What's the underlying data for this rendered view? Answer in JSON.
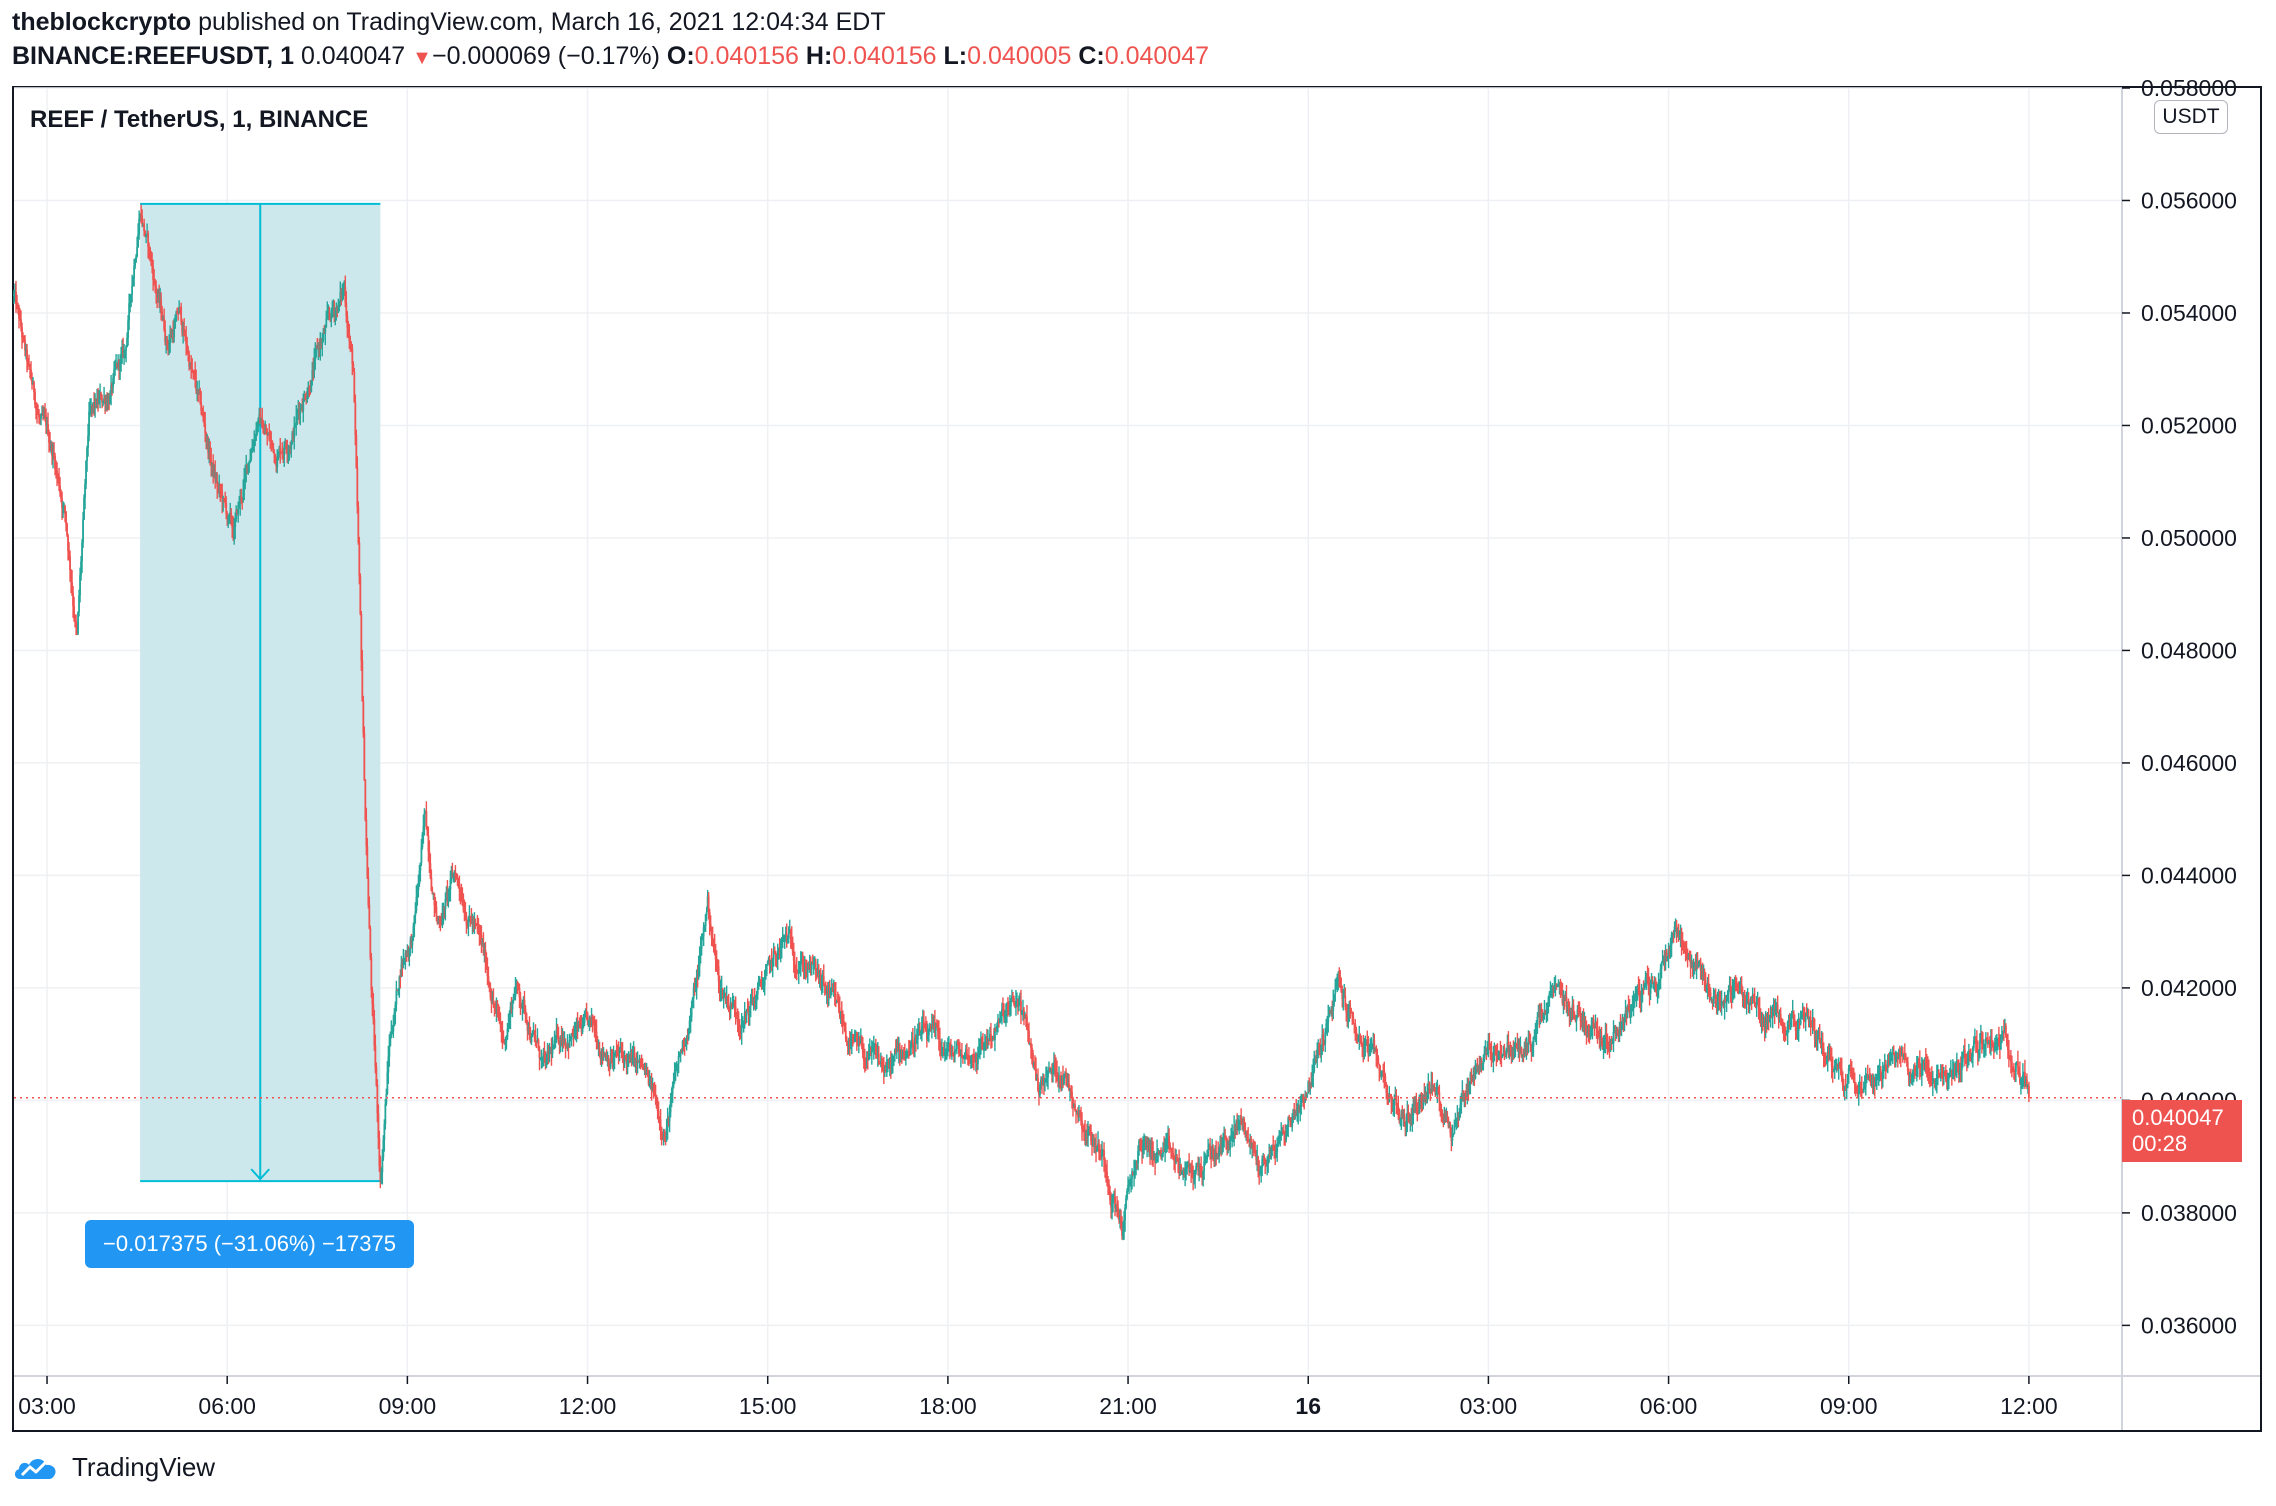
{
  "header": {
    "publisher": "theblockcrypto",
    "published_text": " published on TradingView.com, March 16, 2021 12:04:34 EDT",
    "symbol": "BINANCE:REEFUSDT, 1",
    "last": "0.040047",
    "change_arrow": "▼",
    "change": "−0.000069 (−0.17%)",
    "o_label": "O:",
    "o_value": "0.040156",
    "h_label": "H:",
    "h_value": "0.040156",
    "l_label": "L:",
    "l_value": "0.040005",
    "c_label": "C:",
    "c_value": "0.040047"
  },
  "chart_title": "REEF / TetherUS, 1, BINANCE",
  "currency_badge": "USDT",
  "current_price": {
    "value": "0.040047",
    "countdown": "00:28"
  },
  "measure_label": "−0.017375 (−31.06%) −17375",
  "footer": {
    "brand": "TradingView",
    "icon": "tradingview-cloud-icon"
  },
  "colors": {
    "up": "#26a69a",
    "down": "#ef5350",
    "measure_fill": "#cde8ec",
    "measure_line": "#00bcd4",
    "label_bg": "#2196f3"
  },
  "chart_data": {
    "type": "candlestick",
    "title": "REEF / TetherUS, 1, BINANCE",
    "ylim": [
      0.0351,
      0.058
    ],
    "y_ticks": [
      "0.036000",
      "0.038000",
      "0.040000",
      "0.042000",
      "0.044000",
      "0.046000",
      "0.048000",
      "0.050000",
      "0.052000",
      "0.054000",
      "0.056000",
      "0.058000"
    ],
    "x_ticks": [
      {
        "label": "03:00",
        "h": 3,
        "bold": false
      },
      {
        "label": "06:00",
        "h": 6,
        "bold": false
      },
      {
        "label": "09:00",
        "h": 9,
        "bold": false
      },
      {
        "label": "12:00",
        "h": 12,
        "bold": false
      },
      {
        "label": "15:00",
        "h": 15,
        "bold": false
      },
      {
        "label": "18:00",
        "h": 18,
        "bold": false
      },
      {
        "label": "21:00",
        "h": 21,
        "bold": false
      },
      {
        "label": "16",
        "h": 24,
        "bold": true
      },
      {
        "label": "03:00",
        "h": 27,
        "bold": false
      },
      {
        "label": "06:00",
        "h": 30,
        "bold": false
      },
      {
        "label": "09:00",
        "h": 33,
        "bold": false
      },
      {
        "label": "12:00",
        "h": 36,
        "bold": false
      }
    ],
    "xlim_hours": [
      2.45,
      37.55
    ],
    "price_path": [
      [
        2.45,
        0.0543
      ],
      [
        2.7,
        0.0528
      ],
      [
        2.9,
        0.052
      ],
      [
        3.1,
        0.0515
      ],
      [
        3.3,
        0.0505
      ],
      [
        3.5,
        0.0483
      ],
      [
        3.7,
        0.052
      ],
      [
        4.0,
        0.0525
      ],
      [
        4.3,
        0.0532
      ],
      [
        4.55,
        0.056
      ],
      [
        4.8,
        0.0545
      ],
      [
        5.0,
        0.0535
      ],
      [
        5.2,
        0.054
      ],
      [
        5.5,
        0.0525
      ],
      [
        5.8,
        0.051
      ],
      [
        6.1,
        0.05
      ],
      [
        6.3,
        0.051
      ],
      [
        6.5,
        0.0522
      ],
      [
        6.8,
        0.0515
      ],
      [
        7.1,
        0.052
      ],
      [
        7.4,
        0.053
      ],
      [
        7.7,
        0.0538
      ],
      [
        7.95,
        0.0544
      ],
      [
        8.1,
        0.053
      ],
      [
        8.2,
        0.049
      ],
      [
        8.3,
        0.045
      ],
      [
        8.4,
        0.042
      ],
      [
        8.55,
        0.0386
      ],
      [
        8.7,
        0.041
      ],
      [
        8.9,
        0.0425
      ],
      [
        9.1,
        0.043
      ],
      [
        9.3,
        0.045
      ],
      [
        9.5,
        0.0432
      ],
      [
        9.8,
        0.044
      ],
      [
        10.1,
        0.0432
      ],
      [
        10.4,
        0.042
      ],
      [
        10.6,
        0.041
      ],
      [
        10.8,
        0.0421
      ],
      [
        11.0,
        0.0415
      ],
      [
        11.3,
        0.0405
      ],
      [
        11.6,
        0.0412
      ],
      [
        12.0,
        0.0412
      ],
      [
        12.5,
        0.0408
      ],
      [
        12.9,
        0.0405
      ],
      [
        13.3,
        0.0395
      ],
      [
        13.6,
        0.041
      ],
      [
        13.8,
        0.042
      ],
      [
        14.0,
        0.0435
      ],
      [
        14.2,
        0.042
      ],
      [
        14.6,
        0.0415
      ],
      [
        15.0,
        0.0422
      ],
      [
        15.3,
        0.0428
      ],
      [
        15.7,
        0.0424
      ],
      [
        16.0,
        0.0418
      ],
      [
        16.5,
        0.0408
      ],
      [
        17.0,
        0.0405
      ],
      [
        17.5,
        0.0412
      ],
      [
        18.0,
        0.0408
      ],
      [
        18.4,
        0.0408
      ],
      [
        18.8,
        0.0413
      ],
      [
        19.2,
        0.0417
      ],
      [
        19.5,
        0.0403
      ],
      [
        19.9,
        0.0406
      ],
      [
        20.3,
        0.0396
      ],
      [
        20.6,
        0.039
      ],
      [
        20.9,
        0.0378
      ],
      [
        21.2,
        0.0392
      ],
      [
        21.6,
        0.039
      ],
      [
        22.0,
        0.0386
      ],
      [
        22.5,
        0.0391
      ],
      [
        22.9,
        0.0396
      ],
      [
        23.2,
        0.0388
      ],
      [
        23.6,
        0.0394
      ],
      [
        23.9,
        0.0401
      ],
      [
        24.2,
        0.0409
      ],
      [
        24.5,
        0.042
      ],
      [
        24.8,
        0.0412
      ],
      [
        25.2,
        0.0405
      ],
      [
        25.6,
        0.0396
      ],
      [
        26.0,
        0.0403
      ],
      [
        26.4,
        0.0396
      ],
      [
        26.8,
        0.0407
      ],
      [
        27.2,
        0.041
      ],
      [
        27.6,
        0.0408
      ],
      [
        28.1,
        0.0418
      ],
      [
        28.5,
        0.0415
      ],
      [
        29.0,
        0.0412
      ],
      [
        29.4,
        0.0418
      ],
      [
        29.8,
        0.042
      ],
      [
        30.1,
        0.0432
      ],
      [
        30.4,
        0.0425
      ],
      [
        30.8,
        0.0418
      ],
      [
        31.2,
        0.042
      ],
      [
        31.6,
        0.0414
      ],
      [
        32.0,
        0.0416
      ],
      [
        32.5,
        0.0411
      ],
      [
        32.9,
        0.0405
      ],
      [
        33.3,
        0.0406
      ],
      [
        33.7,
        0.0406
      ],
      [
        34.2,
        0.0406
      ],
      [
        34.6,
        0.0403
      ],
      [
        35.0,
        0.0408
      ],
      [
        35.4,
        0.0412
      ],
      [
        35.8,
        0.0409
      ],
      [
        36.0,
        0.04005
      ]
    ],
    "measurement": {
      "from_h": 4.55,
      "to_h": 8.55,
      "from_price": 0.05594,
      "to_price": 0.038565,
      "change": "−0.017375",
      "percent": "−31.06%",
      "ticks": "−17375"
    },
    "current_price_line": 0.040047
  }
}
